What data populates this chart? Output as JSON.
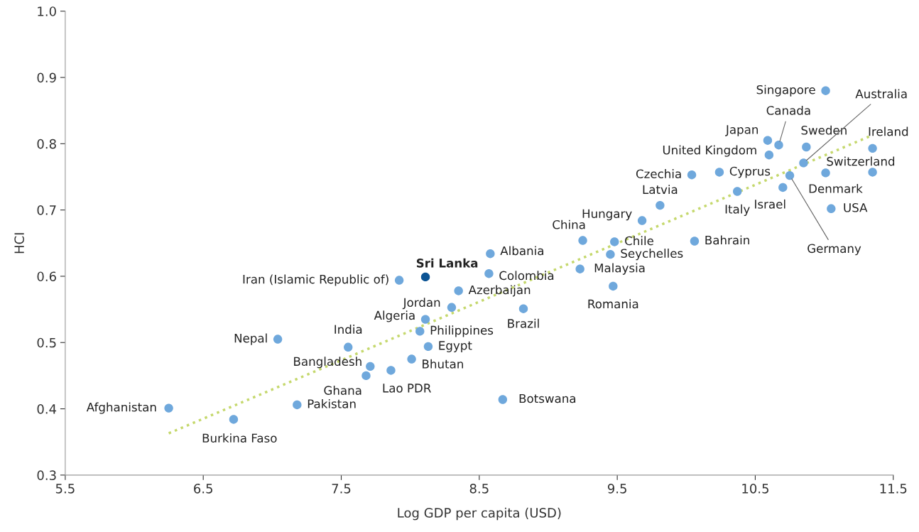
{
  "chart_data": {
    "type": "scatter",
    "xlabel": "Log GDP per capita (USD)",
    "ylabel": "HCI",
    "xlim": [
      5.5,
      11.5
    ],
    "ylim": [
      0.3,
      1.0
    ],
    "xticks": [
      5.5,
      6.5,
      7.5,
      8.5,
      9.5,
      10.5,
      11.5
    ],
    "yticks": [
      0.3,
      0.4,
      0.5,
      0.6,
      0.7,
      0.8,
      0.9,
      {
        "value": 1.0,
        "label": "1.0"
      }
    ],
    "grid": false,
    "legend": false,
    "marker": "circle",
    "series": [
      {
        "name": "Afghanistan",
        "color": "#6fa8dc",
        "x": [
          6.25
        ],
        "values": [
          0.401
        ]
      },
      {
        "name": "Burkina Faso",
        "color": "#6fa8dc",
        "x": [
          6.72
        ],
        "values": [
          0.384
        ]
      },
      {
        "name": "Pakistan",
        "color": "#6fa8dc",
        "x": [
          7.18
        ],
        "values": [
          0.406
        ]
      },
      {
        "name": "Nepal",
        "color": "#6fa8dc",
        "x": [
          7.04
        ],
        "values": [
          0.505
        ]
      },
      {
        "name": "India",
        "color": "#6fa8dc",
        "x": [
          7.55
        ],
        "values": [
          0.493
        ]
      },
      {
        "name": "Bangladesh",
        "color": "#6fa8dc",
        "x": [
          7.71
        ],
        "values": [
          0.464
        ]
      },
      {
        "name": "Ghana",
        "color": "#6fa8dc",
        "x": [
          7.68
        ],
        "values": [
          0.45
        ]
      },
      {
        "name": "Lao PDR",
        "color": "#6fa8dc",
        "x": [
          7.86
        ],
        "values": [
          0.458
        ]
      },
      {
        "name": "Bhutan",
        "color": "#6fa8dc",
        "x": [
          8.01
        ],
        "values": [
          0.475
        ]
      },
      {
        "name": "Egypt",
        "color": "#6fa8dc",
        "x": [
          8.13
        ],
        "values": [
          0.494
        ]
      },
      {
        "name": "Philippines",
        "color": "#6fa8dc",
        "x": [
          8.07
        ],
        "values": [
          0.517
        ]
      },
      {
        "name": "Algeria",
        "color": "#6fa8dc",
        "x": [
          8.11
        ],
        "values": [
          0.535
        ]
      },
      {
        "name": "Jordan",
        "color": "#6fa8dc",
        "x": [
          8.3
        ],
        "values": [
          0.553
        ]
      },
      {
        "name": "Azerbaijan",
        "color": "#6fa8dc",
        "x": [
          8.35
        ],
        "values": [
          0.578
        ]
      },
      {
        "name": "Iran (Islamic Republic of)",
        "color": "#6fa8dc",
        "x": [
          7.92
        ],
        "values": [
          0.594
        ]
      },
      {
        "name": "Sri Lanka",
        "color": "#0b5394",
        "x": [
          8.11
        ],
        "values": [
          0.599
        ]
      },
      {
        "name": "Albania",
        "color": "#6fa8dc",
        "x": [
          8.58
        ],
        "values": [
          0.634
        ]
      },
      {
        "name": "Colombia",
        "color": "#6fa8dc",
        "x": [
          8.57
        ],
        "values": [
          0.604
        ]
      },
      {
        "name": "Brazil",
        "color": "#6fa8dc",
        "x": [
          8.82
        ],
        "values": [
          0.551
        ]
      },
      {
        "name": "Botswana",
        "color": "#6fa8dc",
        "x": [
          8.67
        ],
        "values": [
          0.414
        ]
      },
      {
        "name": "China",
        "color": "#6fa8dc",
        "x": [
          9.25
        ],
        "values": [
          0.654
        ]
      },
      {
        "name": "Chile",
        "color": "#6fa8dc",
        "x": [
          9.48
        ],
        "values": [
          0.652
        ]
      },
      {
        "name": "Seychelles",
        "color": "#6fa8dc",
        "x": [
          9.45
        ],
        "values": [
          0.633
        ]
      },
      {
        "name": "Malaysia",
        "color": "#6fa8dc",
        "x": [
          9.23
        ],
        "values": [
          0.611
        ]
      },
      {
        "name": "Romania",
        "color": "#6fa8dc",
        "x": [
          9.47
        ],
        "values": [
          0.585
        ]
      },
      {
        "name": "Hungary",
        "color": "#6fa8dc",
        "x": [
          9.68
        ],
        "values": [
          0.684
        ]
      },
      {
        "name": "Latvia",
        "color": "#6fa8dc",
        "x": [
          9.81
        ],
        "values": [
          0.707
        ]
      },
      {
        "name": "Bahrain",
        "color": "#6fa8dc",
        "x": [
          10.06
        ],
        "values": [
          0.653
        ]
      },
      {
        "name": "Czechia",
        "color": "#6fa8dc",
        "x": [
          10.04
        ],
        "values": [
          0.753
        ]
      },
      {
        "name": "Cyprus",
        "color": "#6fa8dc",
        "x": [
          10.24
        ],
        "values": [
          0.757
        ]
      },
      {
        "name": "Italy",
        "color": "#6fa8dc",
        "x": [
          10.37
        ],
        "values": [
          0.728
        ]
      },
      {
        "name": "Japan",
        "color": "#6fa8dc",
        "x": [
          10.59
        ],
        "values": [
          0.805
        ]
      },
      {
        "name": "Canada",
        "color": "#6fa8dc",
        "x": [
          10.67
        ],
        "values": [
          0.798
        ]
      },
      {
        "name": "Sweden",
        "color": "#6fa8dc",
        "x": [
          10.87
        ],
        "values": [
          0.795
        ]
      },
      {
        "name": "United Kingdom",
        "color": "#6fa8dc",
        "x": [
          10.6
        ],
        "values": [
          0.783
        ]
      },
      {
        "name": "Australia",
        "color": "#6fa8dc",
        "x": [
          10.85
        ],
        "values": [
          0.771
        ]
      },
      {
        "name": "Ireland",
        "color": "#6fa8dc",
        "x": [
          11.35
        ],
        "values": [
          0.793
        ]
      },
      {
        "name": "Switzerland",
        "color": "#6fa8dc",
        "x": [
          11.35
        ],
        "values": [
          0.757
        ]
      },
      {
        "name": "Denmark",
        "color": "#6fa8dc",
        "x": [
          11.01
        ],
        "values": [
          0.756
        ]
      },
      {
        "name": "Germany",
        "color": "#6fa8dc",
        "x": [
          10.75
        ],
        "values": [
          0.752
        ]
      },
      {
        "name": "Israel",
        "color": "#6fa8dc",
        "x": [
          10.7
        ],
        "values": [
          0.734
        ]
      },
      {
        "name": "USA",
        "color": "#6fa8dc",
        "x": [
          11.05
        ],
        "values": [
          0.702
        ]
      },
      {
        "name": "Singapore",
        "color": "#6fa8dc",
        "x": [
          11.01
        ],
        "values": [
          0.88
        ]
      },
      {
        "type": "line",
        "color": "#c5d86d",
        "line_style": "dotted",
        "marker": "none",
        "x": [
          6.25,
          11.35
        ],
        "values": [
          0.363,
          0.813
        ]
      }
    ]
  }
}
